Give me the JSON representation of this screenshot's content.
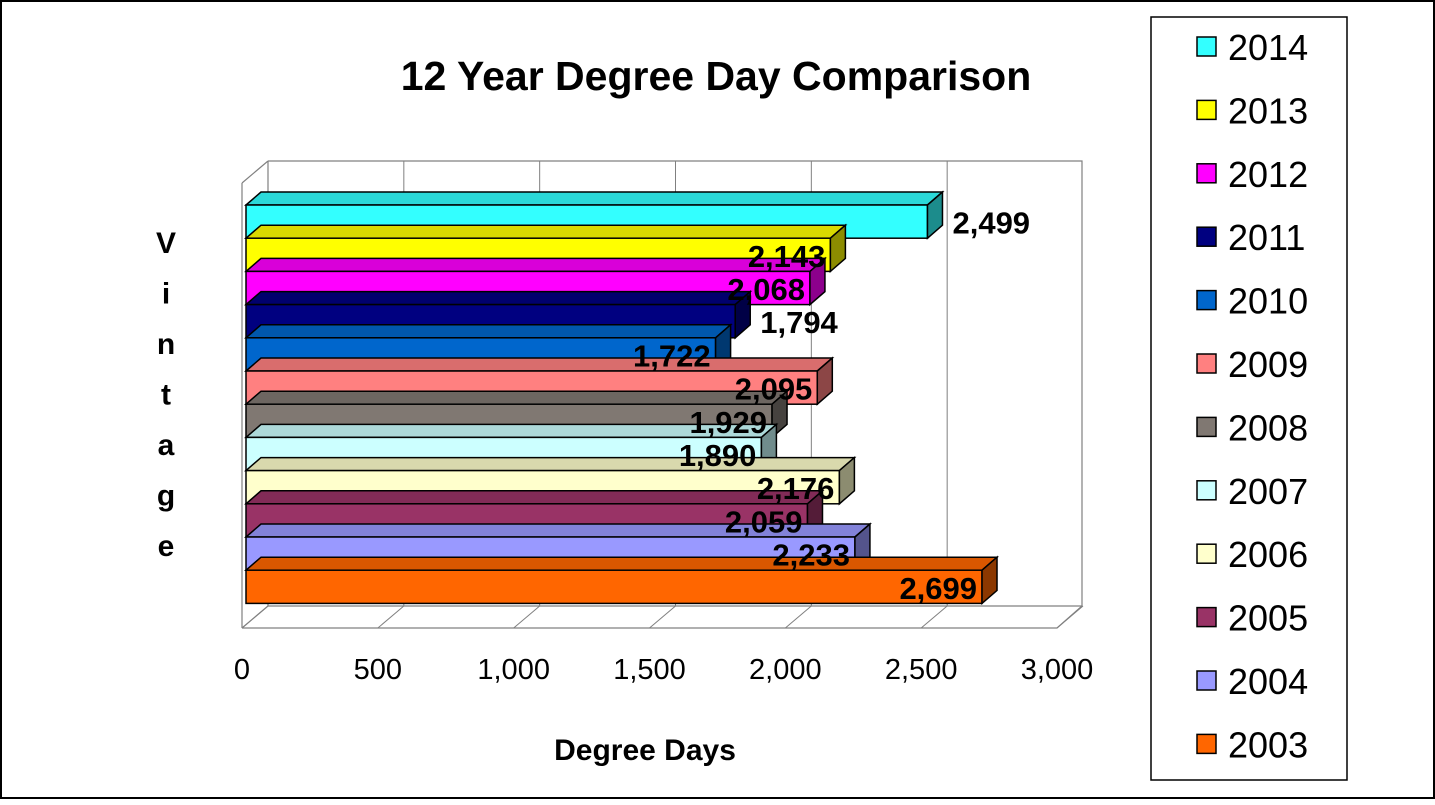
{
  "chart_data": {
    "type": "bar",
    "orientation": "horizontal",
    "style": "3d",
    "title": "12 Year Degree Day Comparison",
    "xlabel": "Degree Days",
    "ylabel": "Vintage",
    "xlim": [
      0,
      3000
    ],
    "x_ticks": [
      0,
      500,
      1000,
      1500,
      2000,
      2500,
      3000
    ],
    "x_tick_labels": [
      "0",
      "500",
      "1,000",
      "1,500",
      "2,000",
      "2,500",
      "3,000"
    ],
    "grid": "vertical",
    "legend_position": "right",
    "series": [
      {
        "name": "2014",
        "value": 2499,
        "label": "2,499",
        "color": "#33FFFF"
      },
      {
        "name": "2013",
        "value": 2143,
        "label": "2,143",
        "color": "#FFFF00"
      },
      {
        "name": "2012",
        "value": 2068,
        "label": "2,068",
        "color": "#FF00FF"
      },
      {
        "name": "2011",
        "value": 1794,
        "label": "1,794",
        "color": "#000080"
      },
      {
        "name": "2010",
        "value": 1722,
        "label": "1,722",
        "color": "#0066CC"
      },
      {
        "name": "2009",
        "value": 2095,
        "label": "2,095",
        "color": "#FF8080"
      },
      {
        "name": "2008",
        "value": 1929,
        "label": "1,929",
        "color": "#807872"
      },
      {
        "name": "2007",
        "value": 1890,
        "label": "1,890",
        "color": "#CCFFFF"
      },
      {
        "name": "2006",
        "value": 2176,
        "label": "2,176",
        "color": "#FFFFCC"
      },
      {
        "name": "2005",
        "value": 2059,
        "label": "2,059",
        "color": "#993366"
      },
      {
        "name": "2004",
        "value": 2233,
        "label": "2,233",
        "color": "#9999FF"
      },
      {
        "name": "2003",
        "value": 2699,
        "label": "2,699",
        "color": "#FF6600"
      }
    ]
  }
}
